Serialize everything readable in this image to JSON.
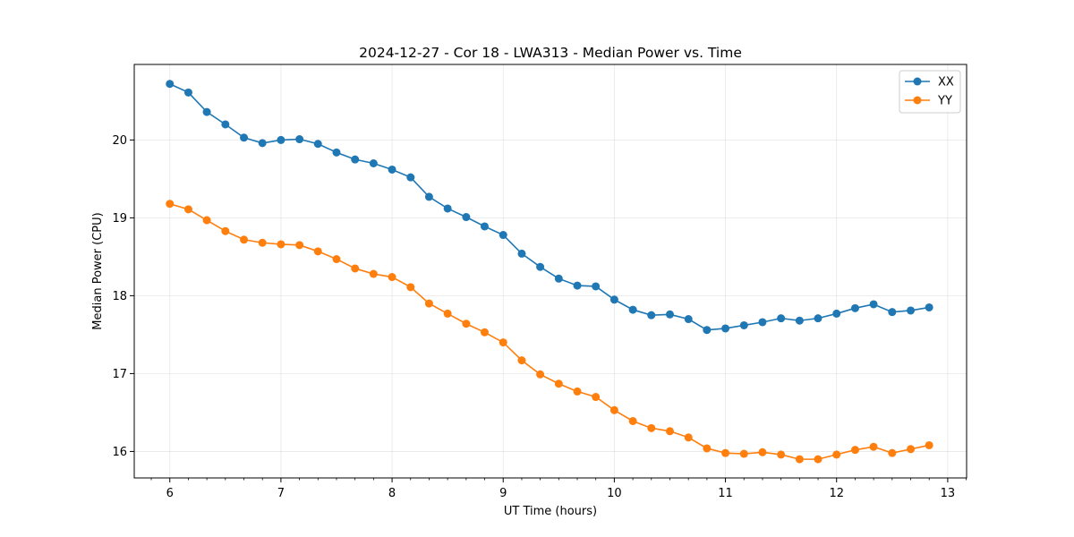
{
  "chart_data": {
    "type": "line",
    "title": "2024-12-27 - Cor 18 - LWA313 - Median Power vs. Time",
    "xlabel": "UT Time (hours)",
    "ylabel": "Median Power (CPU)",
    "xlim": [
      5.68,
      13.17
    ],
    "ylim": [
      15.66,
      20.97
    ],
    "x_ticks": [
      6,
      7,
      8,
      9,
      10,
      11,
      12,
      13
    ],
    "y_ticks": [
      16,
      17,
      18,
      19,
      20
    ],
    "grid": true,
    "legend_position": "top-right",
    "x": [
      6.0,
      6.167,
      6.333,
      6.5,
      6.667,
      6.833,
      7.0,
      7.167,
      7.333,
      7.5,
      7.667,
      7.833,
      8.0,
      8.167,
      8.333,
      8.5,
      8.667,
      8.833,
      9.0,
      9.167,
      9.333,
      9.5,
      9.667,
      9.833,
      10.0,
      10.167,
      10.333,
      10.5,
      10.667,
      10.833,
      11.0,
      11.167,
      11.333,
      11.5,
      11.667,
      11.833,
      12.0,
      12.167,
      12.333,
      12.5,
      12.667,
      12.833
    ],
    "series": [
      {
        "name": "XX",
        "color": "#1f77b4",
        "values": [
          20.72,
          20.61,
          20.36,
          20.2,
          20.03,
          19.96,
          20.0,
          20.01,
          19.95,
          19.84,
          19.75,
          19.7,
          19.62,
          19.52,
          19.27,
          19.12,
          19.01,
          18.89,
          18.78,
          18.54,
          18.37,
          18.22,
          18.13,
          18.12,
          17.95,
          17.82,
          17.75,
          17.76,
          17.7,
          17.56,
          17.58,
          17.62,
          17.66,
          17.71,
          17.68,
          17.71,
          17.77,
          17.84,
          17.89,
          17.79,
          17.81,
          17.85
        ]
      },
      {
        "name": "YY",
        "color": "#ff7f0e",
        "values": [
          19.18,
          19.11,
          18.97,
          18.83,
          18.72,
          18.68,
          18.66,
          18.65,
          18.57,
          18.47,
          18.35,
          18.28,
          18.24,
          18.11,
          17.9,
          17.77,
          17.64,
          17.53,
          17.4,
          17.17,
          16.99,
          16.87,
          16.77,
          16.7,
          16.53,
          16.39,
          16.3,
          16.26,
          16.18,
          16.04,
          15.98,
          15.97,
          15.99,
          15.96,
          15.9,
          15.9,
          15.96,
          16.02,
          16.06,
          15.98,
          16.03,
          16.08
        ]
      }
    ]
  }
}
